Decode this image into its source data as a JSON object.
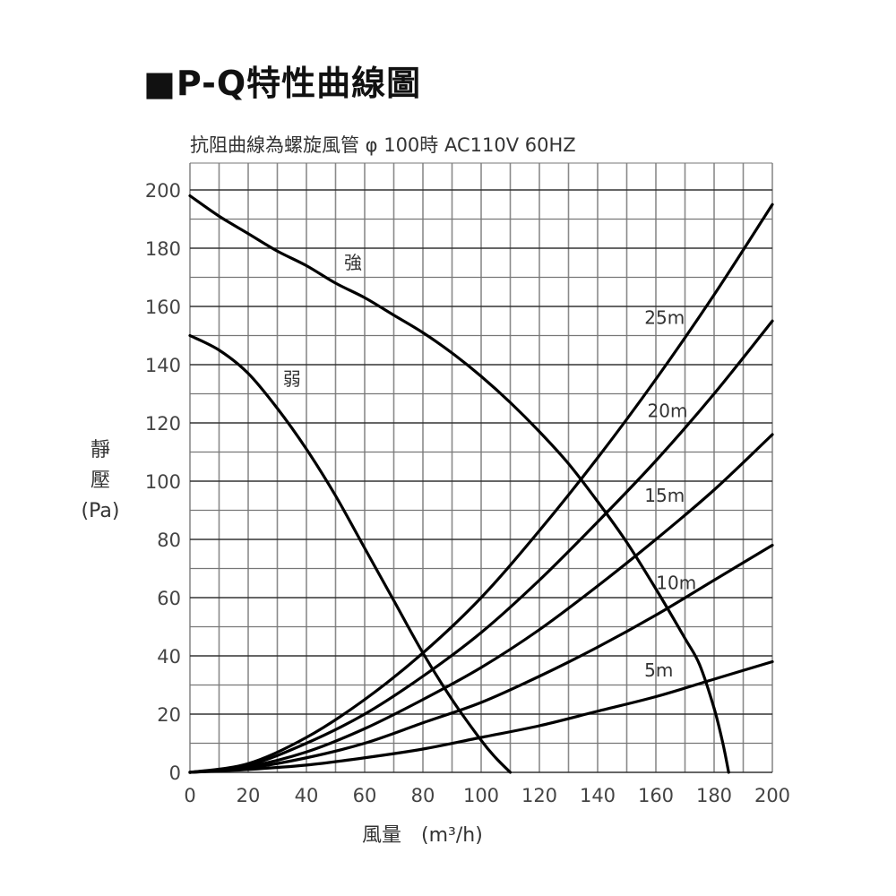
{
  "title": "■P-Q特性曲線圖",
  "subtitle": "抗阻曲線為螺旋風管 φ 100時 AC110V 60HZ",
  "y_axis_label": {
    "line1": "靜",
    "line2": "壓",
    "line3": "(Pa)"
  },
  "x_axis_label": "風量　(m³/h)",
  "chart_data": {
    "type": "line",
    "title": "P-Q特性曲線圖",
    "subtitle": "抗阻曲線為螺旋風管 φ 100時 AC110V 60HZ",
    "xlabel": "風量 (m³/h)",
    "ylabel": "靜壓 (Pa)",
    "xlim": [
      0,
      200
    ],
    "ylim": [
      0,
      200
    ],
    "x_ticks": [
      0,
      20,
      40,
      60,
      80,
      100,
      120,
      140,
      160,
      180,
      200
    ],
    "y_ticks": [
      0,
      20,
      40,
      60,
      80,
      100,
      120,
      140,
      160,
      180,
      200
    ],
    "grid": true,
    "grid_step": 10,
    "series": [
      {
        "name": "強",
        "kind": "fan",
        "points": [
          [
            0,
            198
          ],
          [
            10,
            191
          ],
          [
            20,
            185
          ],
          [
            30,
            179
          ],
          [
            40,
            174
          ],
          [
            50,
            168
          ],
          [
            60,
            163
          ],
          [
            70,
            157
          ],
          [
            80,
            151
          ],
          [
            90,
            144
          ],
          [
            100,
            136
          ],
          [
            110,
            127
          ],
          [
            120,
            117
          ],
          [
            130,
            106
          ],
          [
            140,
            93
          ],
          [
            150,
            79
          ],
          [
            160,
            63
          ],
          [
            170,
            46
          ],
          [
            175,
            37
          ],
          [
            180,
            22
          ],
          [
            183,
            10
          ],
          [
            185,
            0
          ]
        ]
      },
      {
        "name": "弱",
        "kind": "fan",
        "points": [
          [
            0,
            150
          ],
          [
            10,
            145
          ],
          [
            20,
            137
          ],
          [
            30,
            125
          ],
          [
            40,
            111
          ],
          [
            50,
            95
          ],
          [
            60,
            77
          ],
          [
            70,
            59
          ],
          [
            80,
            41
          ],
          [
            90,
            25
          ],
          [
            100,
            11
          ],
          [
            105,
            5
          ],
          [
            110,
            0
          ]
        ]
      },
      {
        "name": "25m",
        "kind": "duct",
        "points": [
          [
            0,
            0
          ],
          [
            20,
            3
          ],
          [
            40,
            12
          ],
          [
            60,
            25
          ],
          [
            80,
            41
          ],
          [
            100,
            60
          ],
          [
            120,
            83
          ],
          [
            140,
            108
          ],
          [
            160,
            135
          ],
          [
            180,
            164
          ],
          [
            200,
            195
          ]
        ]
      },
      {
        "name": "20m",
        "kind": "duct",
        "points": [
          [
            0,
            0
          ],
          [
            20,
            2.5
          ],
          [
            40,
            10
          ],
          [
            60,
            20
          ],
          [
            80,
            33
          ],
          [
            100,
            48
          ],
          [
            120,
            66
          ],
          [
            140,
            86
          ],
          [
            160,
            107
          ],
          [
            180,
            130
          ],
          [
            200,
            155
          ]
        ]
      },
      {
        "name": "15m",
        "kind": "duct",
        "points": [
          [
            0,
            0
          ],
          [
            20,
            2
          ],
          [
            40,
            7
          ],
          [
            60,
            15
          ],
          [
            80,
            25
          ],
          [
            100,
            36
          ],
          [
            120,
            49
          ],
          [
            140,
            64
          ],
          [
            160,
            80
          ],
          [
            180,
            97
          ],
          [
            200,
            116
          ]
        ]
      },
      {
        "name": "10m",
        "kind": "duct",
        "points": [
          [
            0,
            0
          ],
          [
            20,
            1.5
          ],
          [
            40,
            5
          ],
          [
            60,
            10
          ],
          [
            80,
            17
          ],
          [
            100,
            24
          ],
          [
            120,
            33
          ],
          [
            140,
            43
          ],
          [
            160,
            54
          ],
          [
            180,
            66
          ],
          [
            200,
            78
          ]
        ]
      },
      {
        "name": "5m",
        "kind": "duct",
        "points": [
          [
            0,
            0
          ],
          [
            20,
            1
          ],
          [
            40,
            2.5
          ],
          [
            60,
            5
          ],
          [
            80,
            8
          ],
          [
            100,
            12
          ],
          [
            120,
            16
          ],
          [
            140,
            21
          ],
          [
            160,
            26
          ],
          [
            180,
            32
          ],
          [
            200,
            38
          ]
        ]
      }
    ],
    "annotations": [
      {
        "text": "強",
        "x": 56,
        "y": 173
      },
      {
        "text": "弱",
        "x": 35,
        "y": 133
      },
      {
        "text": "25m",
        "x": 163,
        "y": 154
      },
      {
        "text": "20m",
        "x": 164,
        "y": 122
      },
      {
        "text": "15m",
        "x": 163,
        "y": 93
      },
      {
        "text": "10m",
        "x": 167,
        "y": 63
      },
      {
        "text": "5m",
        "x": 161,
        "y": 33
      }
    ]
  }
}
